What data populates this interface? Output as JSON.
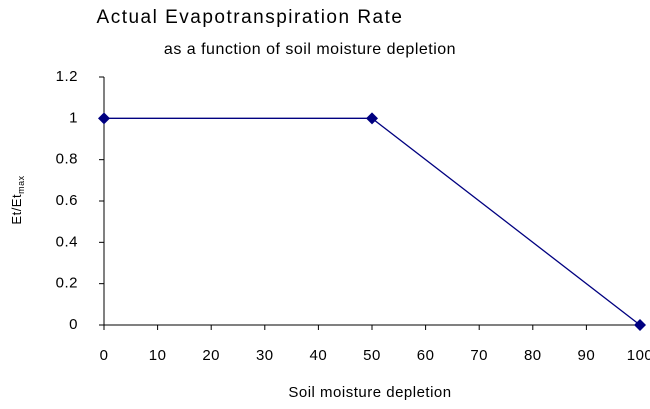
{
  "chart_data": {
    "type": "line",
    "title": "Actual Evapotranspiration Rate",
    "subtitle": "as a function of soil moisture depletion",
    "x_label": "Soil moisture depletion",
    "y_label": "Et/Et",
    "y_label_subscript": "max",
    "x": [
      0,
      50,
      100
    ],
    "series": [
      {
        "name": "Et/Etmax",
        "color": "#000080",
        "values": [
          1,
          1,
          0
        ]
      }
    ],
    "xlim": [
      0,
      100
    ],
    "xticks": [
      0,
      10,
      20,
      30,
      40,
      50,
      60,
      70,
      80,
      90,
      100
    ],
    "ylim": [
      0,
      1.2
    ],
    "yticks": [
      0,
      0.2,
      0.4,
      0.6,
      0.8,
      1,
      1.2
    ],
    "grid": false,
    "legend": false
  }
}
